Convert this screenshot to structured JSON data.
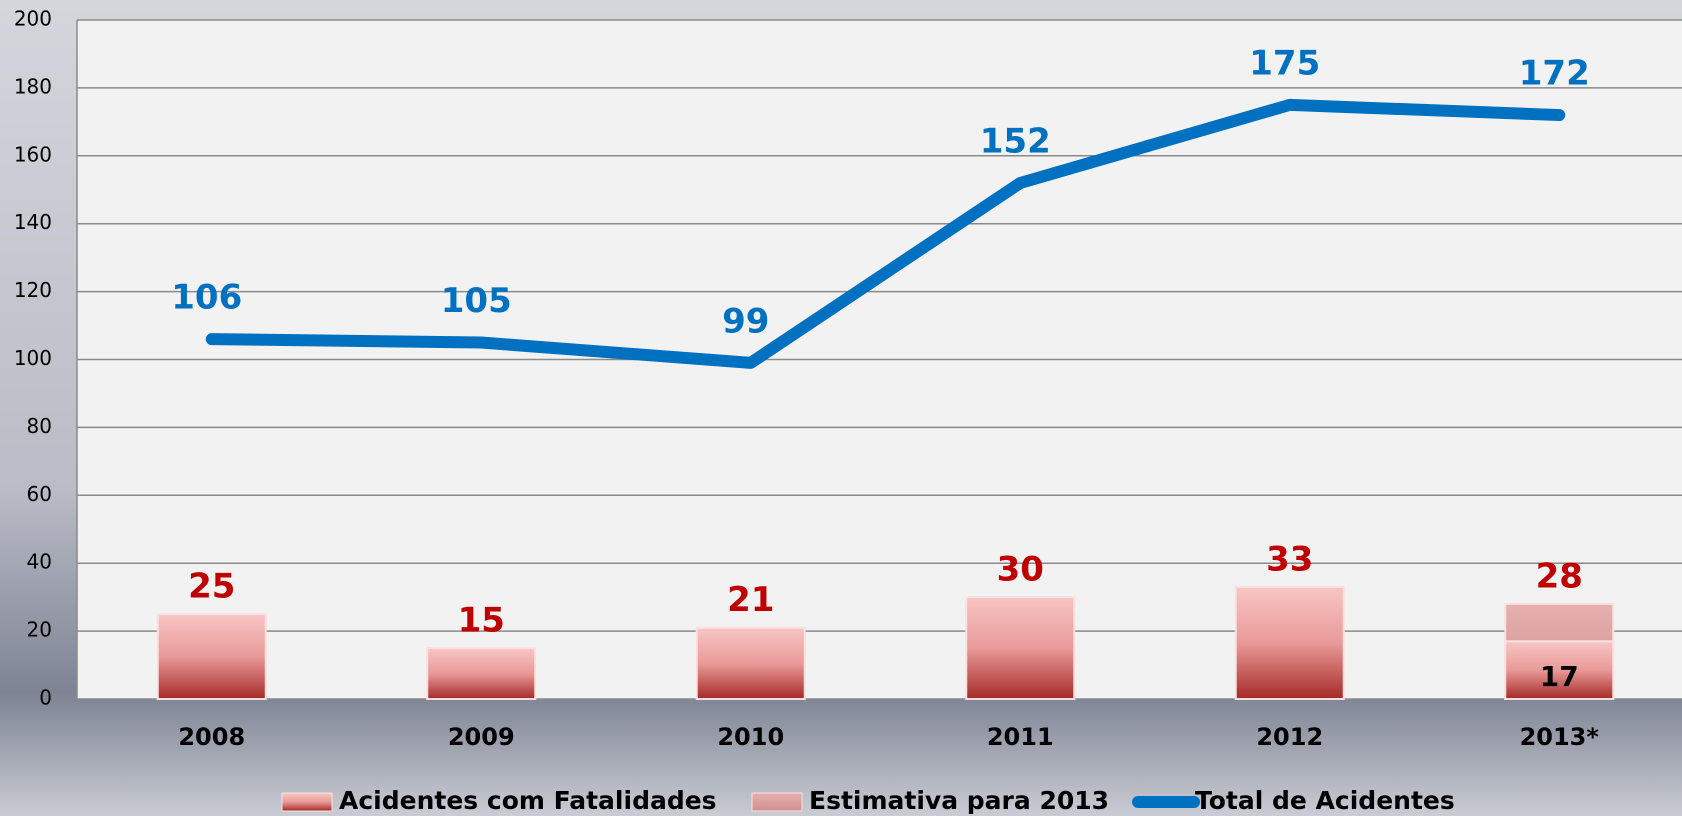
{
  "chart_data": {
    "type": "bar",
    "categories": [
      "2008",
      "2009",
      "2010",
      "2011",
      "2012",
      "2013*"
    ],
    "series": [
      {
        "name": "Acidentes com Fatalidades",
        "type": "bar",
        "color": "#c0504d",
        "values": [
          25,
          15,
          21,
          30,
          33,
          17
        ]
      },
      {
        "name": "Estimativa para 2013",
        "type": "bar",
        "color": "#d99594",
        "values": [
          null,
          null,
          null,
          null,
          null,
          28
        ]
      },
      {
        "name": "Total de Acidentes",
        "type": "line",
        "color": "#0070c0",
        "values": [
          106,
          105,
          99,
          152,
          175,
          172
        ]
      }
    ],
    "ylim": [
      0,
      200
    ],
    "yticks": [
      0,
      20,
      40,
      60,
      80,
      100,
      120,
      140,
      160,
      180,
      200
    ],
    "grid": true,
    "legend": "bottom"
  }
}
